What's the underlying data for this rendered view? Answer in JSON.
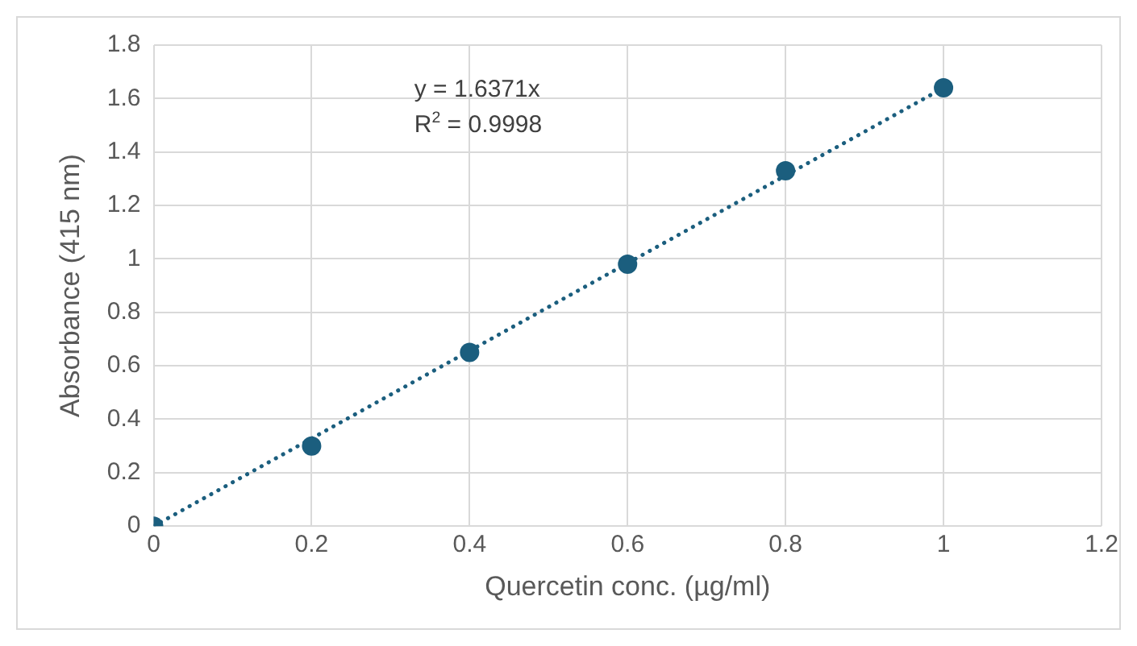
{
  "chart_data": {
    "type": "scatter",
    "xlabel": "Quercetin conc. (µg/ml)",
    "ylabel": "Absorbance (415 nm)",
    "annotations": [
      "y = 1.6371x",
      "R$^{2}$ = 0.9998"
    ],
    "series": [
      {
        "type": "scatter",
        "color": "#1b5e7e",
        "x": [
          0,
          0.2,
          0.4,
          0.6,
          0.8,
          1
        ],
        "values": [
          0,
          0.3,
          0.65,
          0.98,
          1.33,
          1.64
        ],
        "marker": "circle"
      },
      {
        "type": "line",
        "color": "#1b5e7e",
        "x": [
          0,
          1
        ],
        "values": [
          0,
          1.64
        ],
        "line_style": "dotted",
        "marker": "none"
      }
    ],
    "xlim": [
      0,
      1.2
    ],
    "xticks": [
      0,
      0.2,
      0.4,
      0.6,
      0.8,
      1,
      1.2
    ],
    "ylim": [
      0,
      1.8
    ],
    "yticks": [
      0,
      0.2,
      0.4,
      0.6,
      0.8,
      1,
      1.2,
      1.4,
      1.6,
      1.8
    ],
    "grid": true,
    "legend": false
  }
}
